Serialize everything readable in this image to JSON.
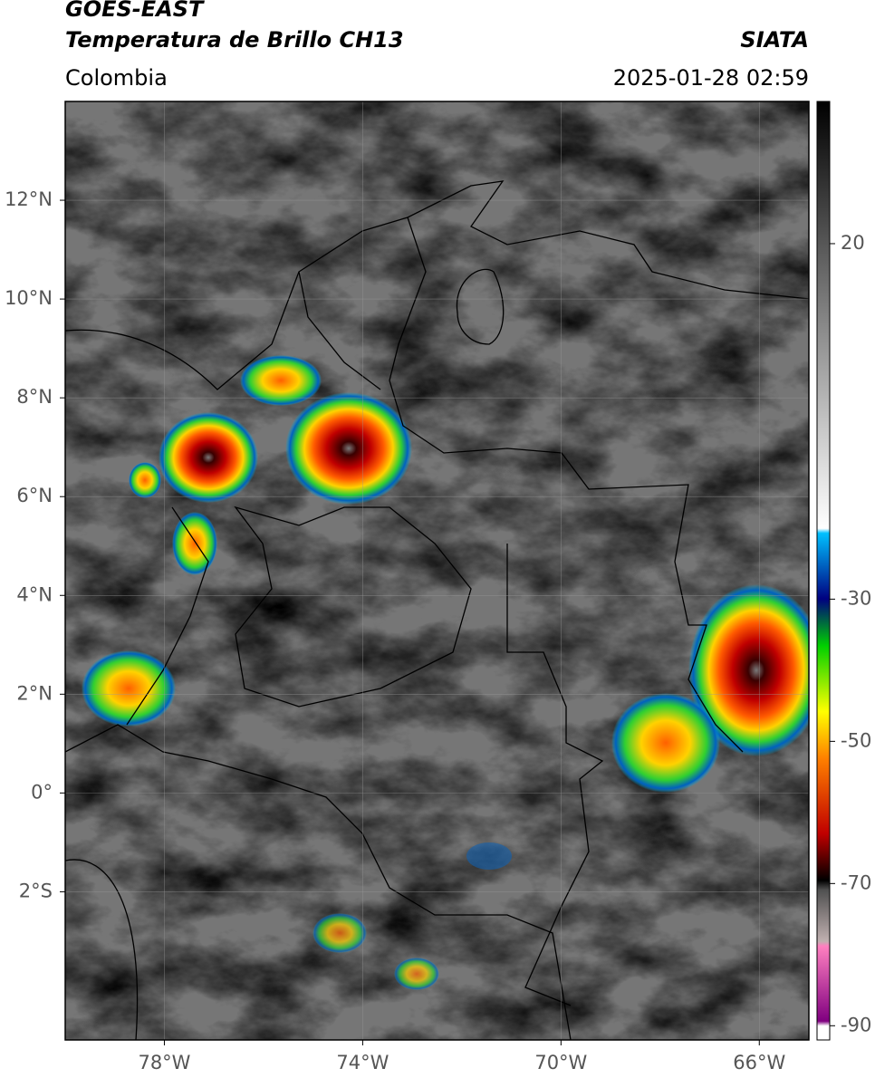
{
  "header": {
    "title": "GOES-EAST",
    "subtitle": "Temperatura de Brillo CH13",
    "region": "Colombia",
    "source": "SIATA",
    "timestamp": "2025-01-28 02:59"
  },
  "map": {
    "xlim": [
      -80,
      -65
    ],
    "ylim": [
      -5,
      14
    ],
    "xticks": [
      {
        "value": -78,
        "label": "78°W"
      },
      {
        "value": -74,
        "label": "74°W"
      },
      {
        "value": -70,
        "label": "70°W"
      },
      {
        "value": -66,
        "label": "66°W"
      }
    ],
    "yticks": [
      {
        "value": 12,
        "label": "12°N"
      },
      {
        "value": 10,
        "label": "10°N"
      },
      {
        "value": 8,
        "label": "8°N"
      },
      {
        "value": 6,
        "label": "6°N"
      },
      {
        "value": 4,
        "label": "4°N"
      },
      {
        "value": 2,
        "label": "2°N"
      },
      {
        "value": 0,
        "label": "0°"
      },
      {
        "value": -2,
        "label": "2°S"
      }
    ],
    "grid": true
  },
  "colorbar": {
    "clim": [
      -92,
      40
    ],
    "ticks": [
      20,
      -30,
      -50,
      -70,
      -90
    ]
  }
}
